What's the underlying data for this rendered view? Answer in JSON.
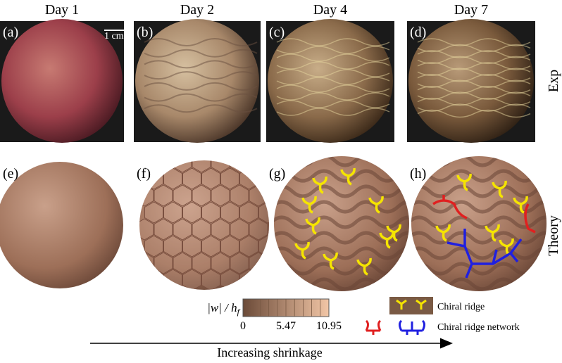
{
  "columns": [
    {
      "day": "Day 1",
      "photo_label": "(a)",
      "model_label": "(e)"
    },
    {
      "day": "Day 2",
      "photo_label": "(b)",
      "model_label": "(f)"
    },
    {
      "day": "Day 4",
      "photo_label": "(c)",
      "model_label": "(g)"
    },
    {
      "day": "Day 7",
      "photo_label": "(d)",
      "model_label": "(h)"
    }
  ],
  "scale_bar": "1 cm",
  "row_labels": {
    "experiment": "Exp",
    "theory": "Theory"
  },
  "colorbar": {
    "label": "|w| / h",
    "label_sub": "f",
    "ticks": [
      0,
      5.47,
      10.95
    ]
  },
  "legend": {
    "single": "Chiral ridge",
    "network": "Chiral ridge network"
  },
  "arrow_label": "Increasing shrinkage"
}
